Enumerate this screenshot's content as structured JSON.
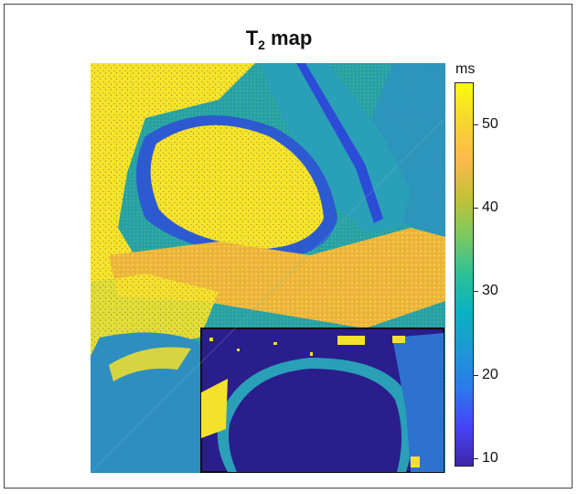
{
  "figure": {
    "title_main": "T",
    "title_sub": "2",
    "title_rest": " map"
  },
  "colorbar": {
    "unit": "ms",
    "min": 9,
    "max": 55,
    "ticks": [
      {
        "value": 10,
        "label": "10"
      },
      {
        "value": 20,
        "label": "20"
      },
      {
        "value": 30,
        "label": "30"
      },
      {
        "value": 40,
        "label": "40"
      },
      {
        "value": 50,
        "label": "50"
      }
    ],
    "colormap": [
      "#3e26a8",
      "#4743f6",
      "#2c79ec",
      "#1f97d4",
      "#0ab1c2",
      "#2cc097",
      "#7bc960",
      "#c2c137",
      "#fcb94c",
      "#f6d52f",
      "#f9fb0e"
    ]
  },
  "image": {
    "description_icon": "mri-hip-t2-map",
    "inset_present": true
  }
}
